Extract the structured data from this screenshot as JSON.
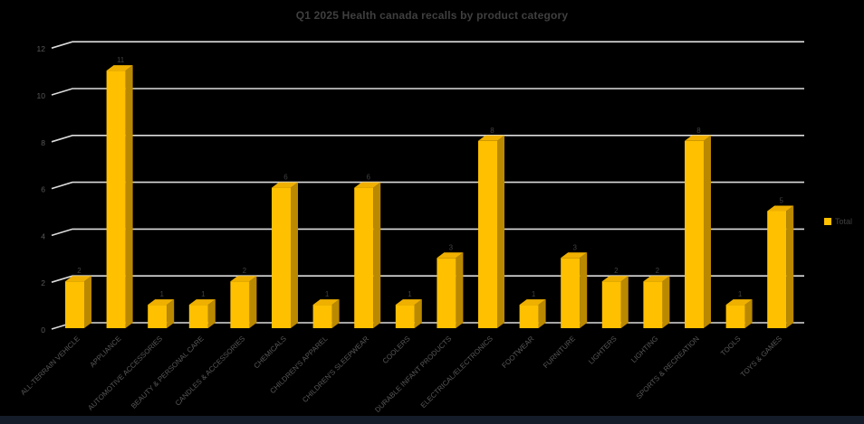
{
  "chart_data": {
    "type": "bar",
    "projection": "3d",
    "title": "Q1 2025 Health canada recalls by product category",
    "categories": [
      "ALL-TERRAIN VEHICLE",
      "APPLIANCE",
      "AUTOMOTIVE ACCESSORIES",
      "BEAUTY & PERSONAL CARE",
      "CANDLES & ACCESSORIES",
      "CHEMICALS",
      "CHILDREN'S APPAREL",
      "CHILDREN'S SLEEPWEAR",
      "COOLERS",
      "DURABLE INFANT PRODUCTS",
      "ELECTRICAL/ELECTRONICS",
      "FOOTWEAR",
      "FURNITURE",
      "LIGHTERS",
      "LIGHTING",
      "SPORTS & RECREATION",
      "TOOLS",
      "TOYS & GAMES"
    ],
    "series": [
      {
        "name": "Total",
        "values": [
          2,
          11,
          1,
          1,
          2,
          6,
          1,
          6,
          1,
          3,
          8,
          1,
          3,
          2,
          2,
          8,
          1,
          5
        ]
      }
    ],
    "xlabel": "",
    "ylabel": "",
    "ylim": [
      0,
      12
    ],
    "yticks": [
      0,
      2,
      4,
      6,
      8,
      10,
      12
    ],
    "grid": true,
    "legend": {
      "label": "Total",
      "position": "right"
    },
    "colors": {
      "background": "#000000",
      "bar_front": "#FFC000",
      "bar_side": "#BA8900",
      "bar_top": "#EFB000",
      "gridline": "#DCDCDC",
      "axis_text": "#595959",
      "title_text": "#3F3F3F",
      "value_label_text": "#404040",
      "footer_strip": "#141C2A"
    }
  }
}
